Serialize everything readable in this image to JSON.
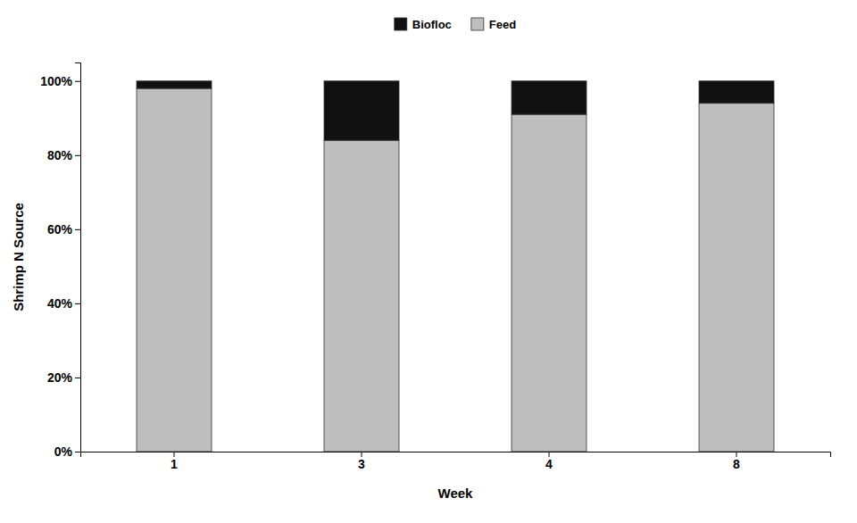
{
  "chart_data": {
    "type": "bar",
    "stacked": true,
    "categories": [
      "1",
      "3",
      "4",
      "8"
    ],
    "series": [
      {
        "name": "Feed",
        "color": "#BEBEBE",
        "values": [
          98,
          84,
          91,
          94
        ]
      },
      {
        "name": "Biofloc",
        "color": "#111111",
        "values": [
          2,
          16,
          9,
          6
        ]
      }
    ],
    "xlabel": "Week",
    "ylabel": "Shrimp N Source",
    "ylim": [
      0,
      105
    ],
    "yticks": [
      {
        "value": 0,
        "label": "0%"
      },
      {
        "value": 20,
        "label": "20%"
      },
      {
        "value": 40,
        "label": "40%"
      },
      {
        "value": 60,
        "label": "60%"
      },
      {
        "value": 80,
        "label": "80%"
      },
      {
        "value": 100,
        "label": "100%"
      }
    ],
    "grid": false,
    "legend": "top"
  }
}
